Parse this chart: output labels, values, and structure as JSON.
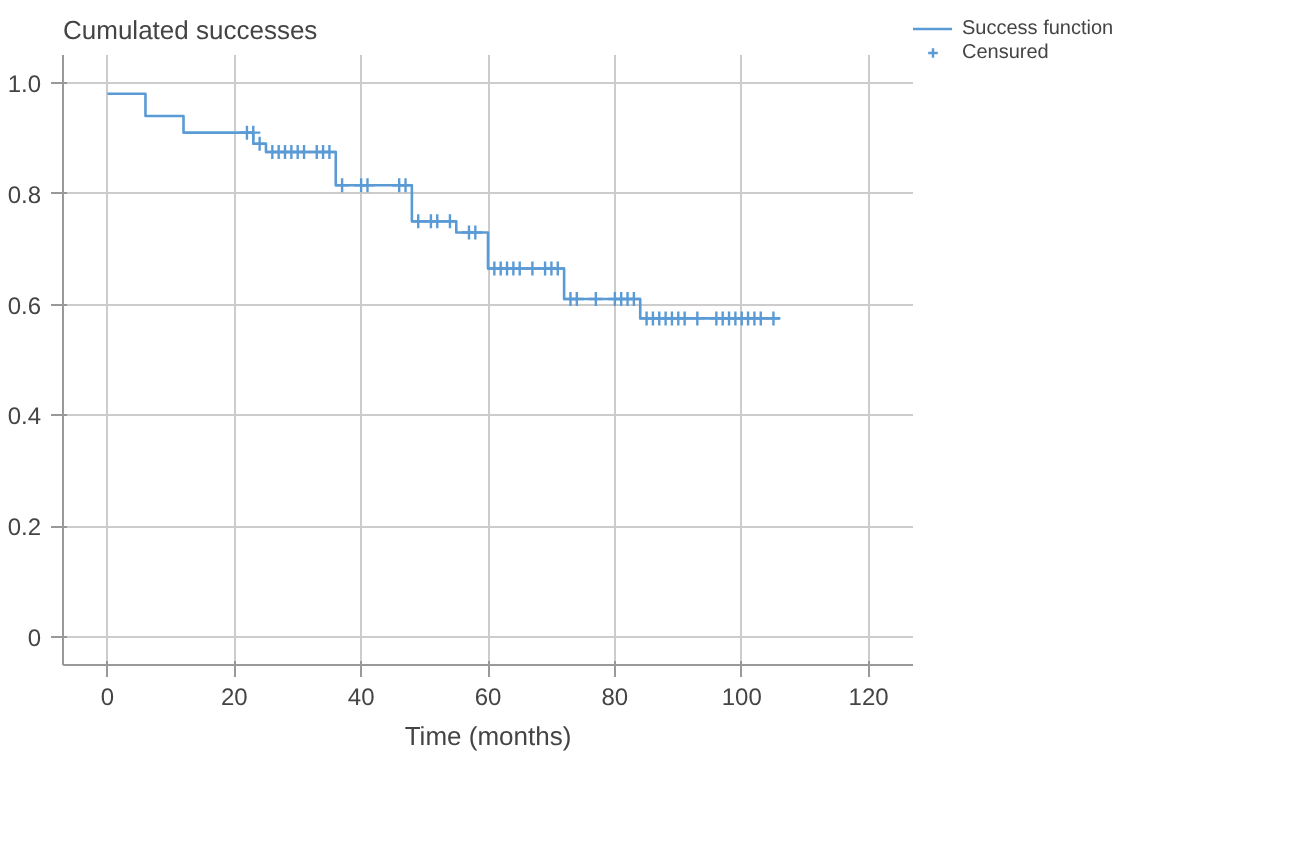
{
  "chart_data": {
    "type": "step",
    "ylabel": "Cumulated successes",
    "xlabel": "Time (months)",
    "xlim": [
      -7,
      127
    ],
    "ylim": [
      -0.05,
      1.05
    ],
    "xticks": [
      0,
      20,
      40,
      60,
      80,
      100,
      120
    ],
    "yticks": [
      {
        "value": 0,
        "label": "0"
      },
      {
        "value": 0.2,
        "label": "0.2"
      },
      {
        "value": 0.4,
        "label": "0.4"
      },
      {
        "value": 0.6,
        "label": "0.6"
      },
      {
        "value": 0.8,
        "label": "0.8"
      },
      {
        "value": 1.0,
        "label": "1.0"
      }
    ],
    "grid": true,
    "legend": "top right",
    "series": [
      {
        "name": "Success function",
        "color": "#5b9bd5",
        "marker": "none",
        "x": [
          0,
          6,
          12,
          23,
          25,
          36,
          48,
          55,
          60,
          72,
          84,
          106
        ],
        "values": [
          0.98,
          0.94,
          0.91,
          0.89,
          0.875,
          0.815,
          0.75,
          0.73,
          0.665,
          0.61,
          0.575,
          0.575
        ]
      },
      {
        "name": "Censured",
        "type": "scatter",
        "color": "#5b9bd5",
        "marker": "cross",
        "x": [
          22,
          23,
          24,
          26,
          27,
          28,
          29,
          30,
          31,
          33,
          34,
          35,
          37,
          40,
          41,
          46,
          47,
          49,
          51,
          52,
          54,
          57,
          58,
          61,
          62,
          63,
          64,
          65,
          67,
          69,
          70,
          71,
          73,
          74,
          77,
          80,
          81,
          82,
          83,
          85,
          86,
          87,
          88,
          89,
          90,
          91,
          93,
          96,
          97,
          98,
          99,
          100,
          101,
          102,
          103,
          105
        ],
        "values": [
          0.91,
          0.91,
          0.89,
          0.875,
          0.875,
          0.875,
          0.875,
          0.875,
          0.875,
          0.875,
          0.875,
          0.875,
          0.815,
          0.815,
          0.815,
          0.815,
          0.815,
          0.75,
          0.75,
          0.75,
          0.75,
          0.73,
          0.73,
          0.665,
          0.665,
          0.665,
          0.665,
          0.665,
          0.665,
          0.665,
          0.665,
          0.665,
          0.61,
          0.61,
          0.61,
          0.61,
          0.61,
          0.61,
          0.61,
          0.575,
          0.575,
          0.575,
          0.575,
          0.575,
          0.575,
          0.575,
          0.575,
          0.575,
          0.575,
          0.575,
          0.575,
          0.575,
          0.575,
          0.575,
          0.575,
          0.575
        ]
      }
    ]
  }
}
